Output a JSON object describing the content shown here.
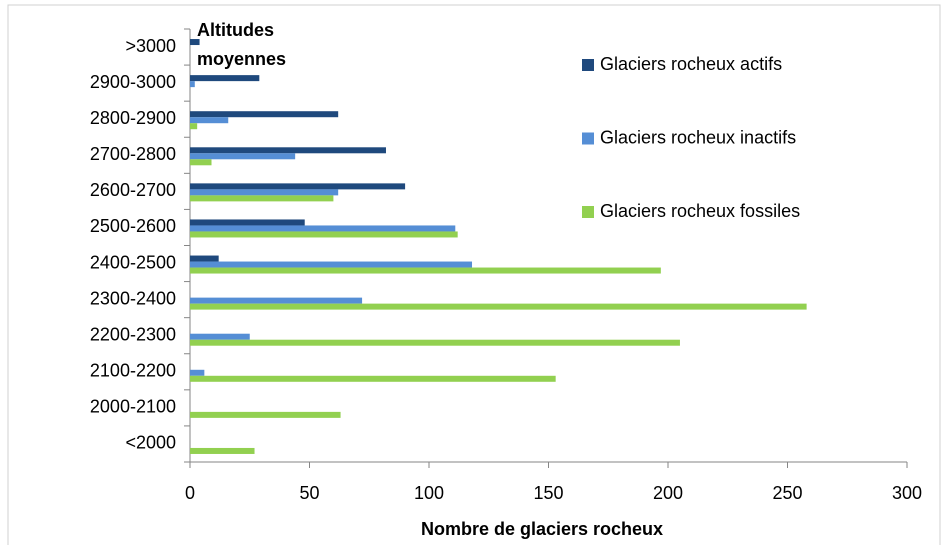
{
  "chart_data": {
    "type": "hbar",
    "title_lines": [
      "Altitudes",
      "moyennes"
    ],
    "xlabel": "Nombre de glaciers rocheux",
    "categories": [
      ">3000",
      "2900-3000",
      "2800-2900",
      "2700-2800",
      "2600-2700",
      "2500-2600",
      "2400-2500",
      "2300-2400",
      "2200-2300",
      "2100-2200",
      "2000-2100",
      "<2000"
    ],
    "series": [
      {
        "name": "Glaciers rocheux actifs",
        "color": "#1f497d",
        "values": [
          4,
          29,
          62,
          82,
          90,
          48,
          12,
          0,
          0,
          0,
          0,
          0
        ]
      },
      {
        "name": "Glaciers rocheux inactifs",
        "color": "#558ed5",
        "values": [
          0,
          2,
          16,
          44,
          62,
          111,
          118,
          72,
          25,
          6,
          0,
          0
        ]
      },
      {
        "name": "Glaciers rocheux fossiles",
        "color": "#92d050",
        "values": [
          0,
          0,
          3,
          9,
          60,
          112,
          197,
          258,
          205,
          153,
          63,
          27
        ]
      }
    ],
    "xlim": [
      0,
      300
    ],
    "xticks": [
      0,
      50,
      100,
      150,
      200,
      250,
      300
    ],
    "legend": "right"
  }
}
